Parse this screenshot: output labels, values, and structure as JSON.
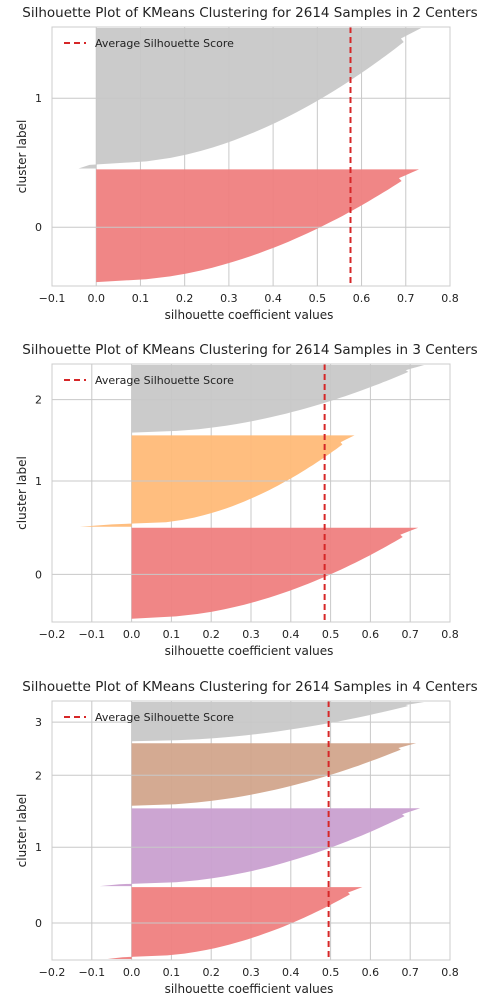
{
  "chart_data": [
    {
      "type": "area",
      "title": "Silhouette Plot of KMeans Clustering for 2614 Samples in 2 Centers",
      "xlabel": "silhouette coefficient values",
      "ylabel": "cluster label",
      "xlim": [
        -0.1,
        0.8
      ],
      "xticks": [
        -0.1,
        0.0,
        0.1,
        0.2,
        0.3,
        0.4,
        0.5,
        0.6,
        0.7,
        0.8
      ],
      "xtick_labels": [
        "−0.1",
        "0.0",
        "0.1",
        "0.2",
        "0.3",
        "0.4",
        "0.5",
        "0.6",
        "0.7",
        "0.8"
      ],
      "ytick_labels": [
        "0",
        "1"
      ],
      "legend": {
        "label": "Average Silhouette Score",
        "placement": "top-left"
      },
      "average_score": 0.575,
      "grid": true,
      "clusters": [
        {
          "label": "0",
          "color": "#ef8080",
          "size": 1180,
          "max": 0.73,
          "min": 0.0
        },
        {
          "label": "1",
          "color": "#c8c8c8",
          "size": 1434,
          "max": 0.735,
          "min": -0.04
        }
      ]
    },
    {
      "type": "area",
      "title": "Silhouette Plot of KMeans Clustering for 2614 Samples in 3 Centers",
      "xlabel": "silhouette coefficient values",
      "ylabel": "cluster label",
      "xlim": [
        -0.2,
        0.8
      ],
      "xticks": [
        -0.2,
        -0.1,
        0.0,
        0.1,
        0.2,
        0.3,
        0.4,
        0.5,
        0.6,
        0.7,
        0.8
      ],
      "xtick_labels": [
        "−0.2",
        "−0.1",
        "0.0",
        "0.1",
        "0.2",
        "0.3",
        "0.4",
        "0.5",
        "0.6",
        "0.7",
        "0.8"
      ],
      "ytick_labels": [
        "0",
        "1",
        "2"
      ],
      "legend": {
        "label": "Average Silhouette Score",
        "placement": "top-left"
      },
      "average_score": 0.485,
      "grid": true,
      "clusters": [
        {
          "label": "0",
          "color": "#ef8080",
          "size": 960,
          "max": 0.72,
          "min": 0.0
        },
        {
          "label": "1",
          "color": "#ffbb78",
          "size": 940,
          "max": 0.56,
          "min": -0.13
        },
        {
          "label": "2",
          "color": "#c8c8c8",
          "size": 714,
          "max": 0.735,
          "min": 0.0
        }
      ]
    },
    {
      "type": "area",
      "title": "Silhouette Plot of KMeans Clustering for 2614 Samples in 4 Centers",
      "xlabel": "silhouette coefficient values",
      "ylabel": "cluster label",
      "xlim": [
        -0.2,
        0.8
      ],
      "xticks": [
        -0.2,
        -0.1,
        0.0,
        0.1,
        0.2,
        0.3,
        0.4,
        0.5,
        0.6,
        0.7,
        0.8
      ],
      "xtick_labels": [
        "−0.2",
        "−0.1",
        "0.0",
        "0.1",
        "0.2",
        "0.3",
        "0.4",
        "0.5",
        "0.6",
        "0.7",
        "0.8"
      ],
      "ytick_labels": [
        "0",
        "1",
        "2",
        "3"
      ],
      "legend": {
        "label": "Average Silhouette Score",
        "placement": "top-left"
      },
      "average_score": 0.495,
      "grid": true,
      "clusters": [
        {
          "label": "0",
          "color": "#ef8080",
          "size": 740,
          "max": 0.58,
          "min": -0.06
        },
        {
          "label": "1",
          "color": "#c9a0d0",
          "size": 800,
          "max": 0.725,
          "min": -0.08
        },
        {
          "label": "2",
          "color": "#d2a58c",
          "size": 660,
          "max": 0.715,
          "min": 0.0
        },
        {
          "label": "3",
          "color": "#c8c8c8",
          "size": 414,
          "max": 0.735,
          "min": 0.0
        }
      ]
    }
  ],
  "style": {
    "grid_color": "#c8c8c8",
    "spine_color": "#cccccc",
    "avg_line_color": "#d62728",
    "text_color": "#222222"
  }
}
